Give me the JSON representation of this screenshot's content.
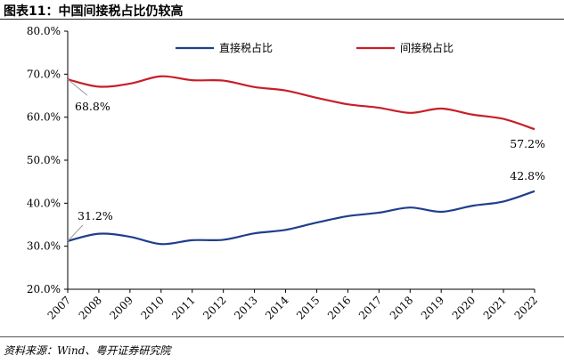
{
  "figure": {
    "title": "图表11：中国间接税占比仍较高",
    "source": "资料来源：Wind、粤开证券研究院"
  },
  "colors": {
    "direct": "#1f3e8c",
    "indirect": "#c81e28",
    "axis": "#000000",
    "leader": "#999999"
  },
  "chart_data": {
    "type": "line",
    "x": [
      "2007",
      "2008",
      "2009",
      "2010",
      "2011",
      "2012",
      "2013",
      "2014",
      "2015",
      "2016",
      "2017",
      "2018",
      "2019",
      "2020",
      "2021",
      "2022"
    ],
    "series": [
      {
        "name": "直接税占比",
        "values": [
          31.2,
          32.9,
          32.2,
          30.5,
          31.4,
          31.5,
          33.0,
          33.8,
          35.5,
          37.0,
          37.8,
          39.0,
          38.0,
          39.4,
          40.4,
          42.8
        ]
      },
      {
        "name": "间接税占比",
        "values": [
          68.8,
          67.1,
          67.8,
          69.5,
          68.6,
          68.5,
          67.0,
          66.2,
          64.5,
          63.0,
          62.2,
          61.0,
          62.0,
          60.6,
          59.6,
          57.2
        ]
      }
    ],
    "yticks": [
      "20.0%",
      "30.0%",
      "40.0%",
      "50.0%",
      "60.0%",
      "70.0%",
      "80.0%"
    ],
    "ylim": [
      20,
      80
    ],
    "legend_position": "top",
    "grid": false,
    "annotations": [
      {
        "label": "68.8%",
        "series": 1,
        "index": 0
      },
      {
        "label": "31.2%",
        "series": 0,
        "index": 0
      },
      {
        "label": "57.2%",
        "series": 1,
        "index": 15
      },
      {
        "label": "42.8%",
        "series": 0,
        "index": 15
      }
    ]
  }
}
